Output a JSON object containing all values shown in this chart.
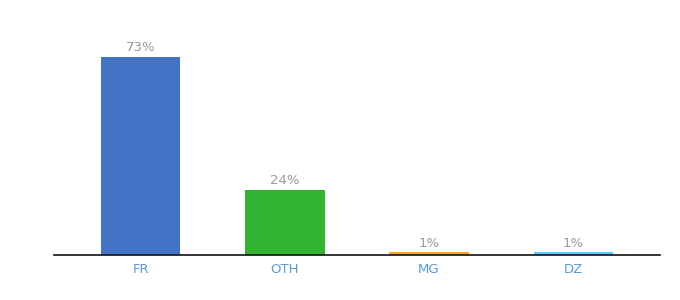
{
  "categories": [
    "FR",
    "OTH",
    "MG",
    "DZ"
  ],
  "values": [
    73,
    24,
    1,
    1
  ],
  "bar_colors": [
    "#4472c4",
    "#32b332",
    "#f5a623",
    "#5bc8f5"
  ],
  "labels": [
    "73%",
    "24%",
    "1%",
    "1%"
  ],
  "ylim": [
    0,
    85
  ],
  "label_fontsize": 9.5,
  "tick_fontsize": 9.5,
  "title_fontsize": 11,
  "bar_width": 0.55,
  "background_color": "#ffffff",
  "label_color": "#999999",
  "tick_color": "#5b9bd5"
}
